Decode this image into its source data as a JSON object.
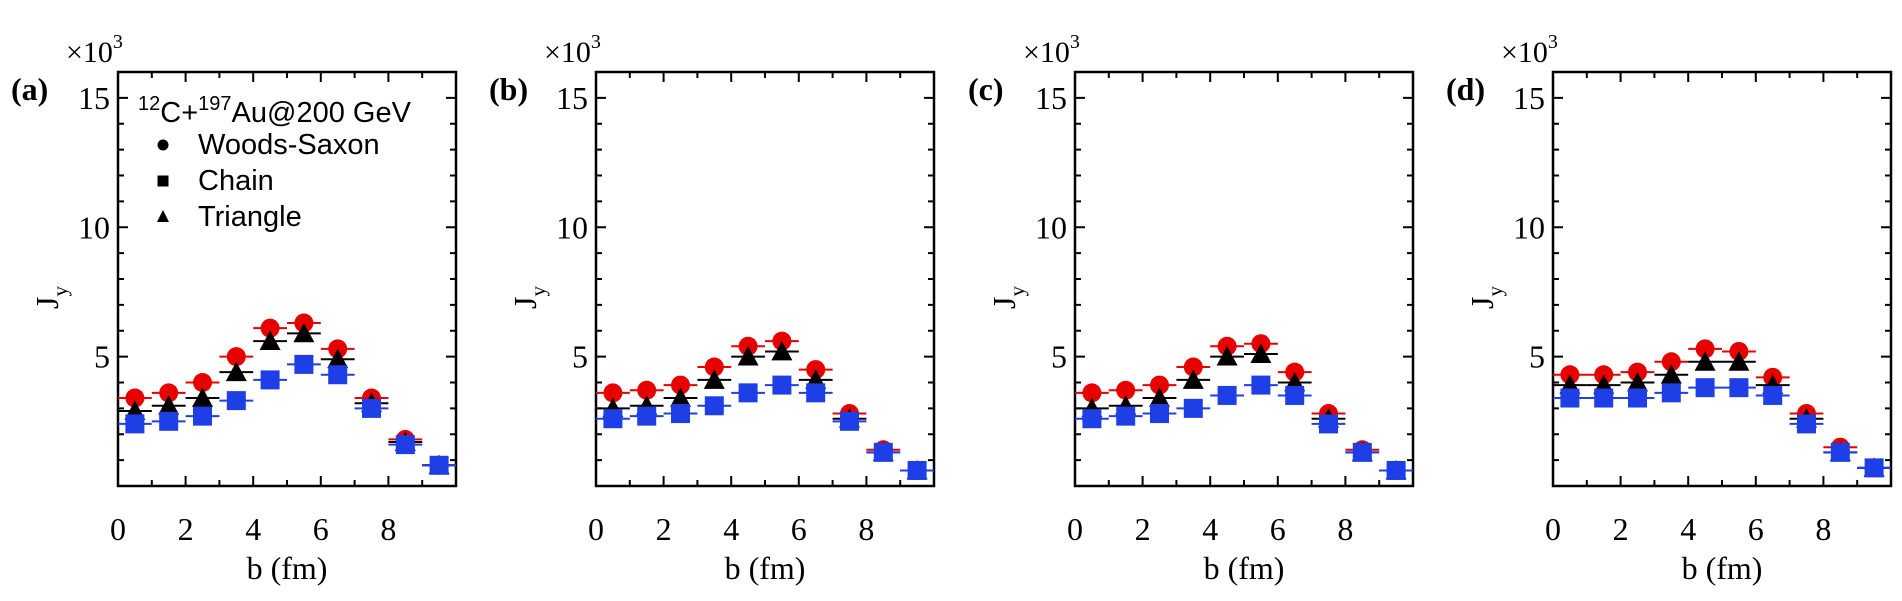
{
  "chart_data": [
    {
      "type": "scatter",
      "panel_label": "(a)",
      "xlabel": "b (fm)",
      "ylabel": "J",
      "ylabel_sub": "y",
      "y_multiplier": "×10",
      "y_multiplier_exp": "3",
      "xlim": [
        0,
        10
      ],
      "ylim": [
        0,
        16
      ],
      "xticks": [
        0,
        2,
        4,
        6,
        8
      ],
      "yticks": [
        5,
        10,
        15
      ],
      "x": [
        0.5,
        1.5,
        2.5,
        3.5,
        4.5,
        5.5,
        6.5,
        7.5,
        8.5,
        9.5
      ],
      "legend": {
        "title_parts": [
          "12",
          "C+",
          "197",
          "Au",
          "@200 GeV"
        ],
        "entries": [
          "Woods-Saxon",
          "Chain",
          "Triangle"
        ]
      },
      "series": [
        {
          "name": "Woods-Saxon",
          "marker": "circle",
          "color": "#e60000",
          "values": [
            3.4,
            3.6,
            4.0,
            5.0,
            6.1,
            6.3,
            5.3,
            3.4,
            1.8,
            0.8
          ]
        },
        {
          "name": "Triangle",
          "marker": "triangle",
          "color": "#000000",
          "values": [
            2.9,
            3.1,
            3.4,
            4.4,
            5.6,
            5.9,
            4.9,
            3.2,
            1.7,
            0.8
          ]
        },
        {
          "name": "Chain",
          "marker": "square",
          "color": "#1f3fe6",
          "values": [
            2.4,
            2.5,
            2.7,
            3.3,
            4.1,
            4.7,
            4.3,
            3.0,
            1.6,
            0.8
          ]
        }
      ]
    },
    {
      "type": "scatter",
      "panel_label": "(b)",
      "xlabel": "b (fm)",
      "ylabel": "J",
      "ylabel_sub": "y",
      "y_multiplier": "×10",
      "y_multiplier_exp": "3",
      "xlim": [
        0,
        10
      ],
      "ylim": [
        0,
        16
      ],
      "xticks": [
        0,
        2,
        4,
        6,
        8
      ],
      "yticks": [
        5,
        10,
        15
      ],
      "x": [
        0.5,
        1.5,
        2.5,
        3.5,
        4.5,
        5.5,
        6.5,
        7.5,
        8.5,
        9.5
      ],
      "series": [
        {
          "name": "Woods-Saxon",
          "marker": "circle",
          "color": "#e60000",
          "values": [
            3.6,
            3.7,
            3.9,
            4.6,
            5.4,
            5.6,
            4.5,
            2.8,
            1.4,
            0.6
          ]
        },
        {
          "name": "Triangle",
          "marker": "triangle",
          "color": "#000000",
          "values": [
            3.0,
            3.1,
            3.4,
            4.1,
            5.0,
            5.2,
            4.1,
            2.6,
            1.3,
            0.6
          ]
        },
        {
          "name": "Chain",
          "marker": "square",
          "color": "#1f3fe6",
          "values": [
            2.6,
            2.7,
            2.8,
            3.1,
            3.6,
            3.9,
            3.6,
            2.5,
            1.3,
            0.6
          ]
        }
      ]
    },
    {
      "type": "scatter",
      "panel_label": "(c)",
      "xlabel": "b (fm)",
      "ylabel": "J",
      "ylabel_sub": "y",
      "y_multiplier": "×10",
      "y_multiplier_exp": "3",
      "xlim": [
        0,
        10
      ],
      "ylim": [
        0,
        16
      ],
      "xticks": [
        0,
        2,
        4,
        6,
        8
      ],
      "yticks": [
        5,
        10,
        15
      ],
      "x": [
        0.5,
        1.5,
        2.5,
        3.5,
        4.5,
        5.5,
        6.5,
        7.5,
        8.5,
        9.5
      ],
      "series": [
        {
          "name": "Woods-Saxon",
          "marker": "circle",
          "color": "#e60000",
          "values": [
            3.6,
            3.7,
            3.9,
            4.6,
            5.4,
            5.5,
            4.4,
            2.8,
            1.4,
            0.6
          ]
        },
        {
          "name": "Triangle",
          "marker": "triangle",
          "color": "#000000",
          "values": [
            3.0,
            3.1,
            3.4,
            4.1,
            5.0,
            5.1,
            4.0,
            2.6,
            1.3,
            0.6
          ]
        },
        {
          "name": "Chain",
          "marker": "square",
          "color": "#1f3fe6",
          "values": [
            2.6,
            2.7,
            2.8,
            3.0,
            3.5,
            3.9,
            3.5,
            2.4,
            1.3,
            0.6
          ]
        }
      ]
    },
    {
      "type": "scatter",
      "panel_label": "(d)",
      "xlabel": "b (fm)",
      "ylabel": "J",
      "ylabel_sub": "y",
      "y_multiplier": "×10",
      "y_multiplier_exp": "3",
      "xlim": [
        0,
        10
      ],
      "ylim": [
        0,
        16
      ],
      "xticks": [
        0,
        2,
        4,
        6,
        8
      ],
      "yticks": [
        5,
        10,
        15
      ],
      "x": [
        0.5,
        1.5,
        2.5,
        3.5,
        4.5,
        5.5,
        6.5,
        7.5,
        8.5,
        9.5
      ],
      "series": [
        {
          "name": "Woods-Saxon",
          "marker": "circle",
          "color": "#e60000",
          "values": [
            4.3,
            4.3,
            4.4,
            4.8,
            5.3,
            5.2,
            4.2,
            2.8,
            1.5,
            0.7
          ]
        },
        {
          "name": "Triangle",
          "marker": "triangle",
          "color": "#000000",
          "values": [
            3.9,
            3.9,
            4.0,
            4.3,
            4.8,
            4.8,
            3.9,
            2.6,
            1.3,
            0.7
          ]
        },
        {
          "name": "Chain",
          "marker": "square",
          "color": "#1f3fe6",
          "values": [
            3.4,
            3.4,
            3.4,
            3.6,
            3.8,
            3.8,
            3.5,
            2.4,
            1.3,
            0.7
          ]
        }
      ]
    }
  ]
}
